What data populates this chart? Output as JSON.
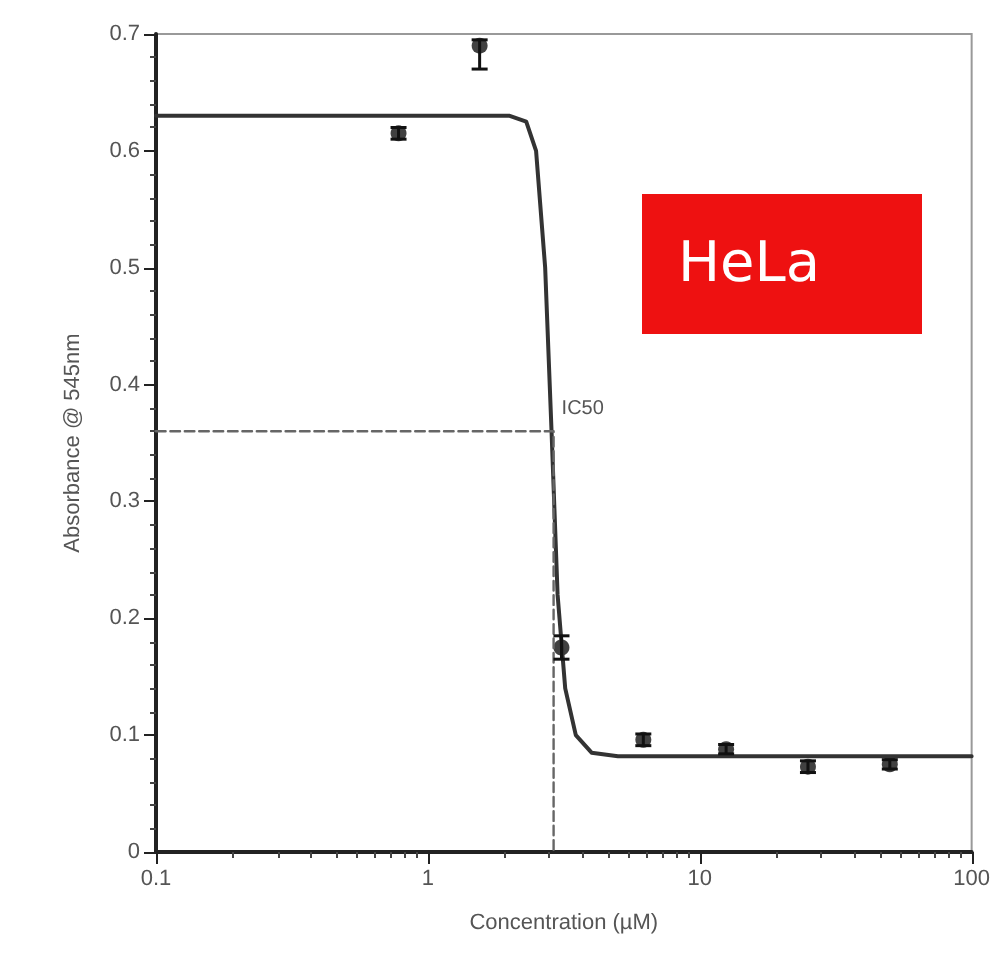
{
  "chart_data": {
    "type": "scatter",
    "xlabel": "Concentration (µM)",
    "ylabel": "Absorbance @ 545nm",
    "log": "x",
    "xlim": [
      0.1,
      100
    ],
    "xticks": [
      0.1,
      1,
      10,
      100
    ],
    "ylim": [
      0,
      0.7
    ],
    "yticks": [
      0,
      0.1,
      0.2,
      0.3,
      0.4,
      0.5,
      0.6,
      0.7
    ],
    "grid": false,
    "series": [
      {
        "color": "#111111",
        "marker": "circle",
        "x": [
          0.78,
          1.55,
          3.1,
          6.2,
          12.5,
          25,
          50
        ],
        "values": [
          0.615,
          0.69,
          0.175,
          0.096,
          0.088,
          0.073,
          0.075
        ],
        "errors": [
          0.005,
          [
            0.67,
            0.695
          ],
          0.01,
          0.005,
          0.004,
          0.005,
          0.004
        ]
      },
      {
        "type": "line",
        "color": "#333333",
        "line_style": "solid",
        "marker": "none",
        "x": [
          0.1,
          2.0,
          2.3,
          2.5,
          2.7,
          2.85,
          3.0,
          3.2,
          3.5,
          4,
          5,
          100
        ],
        "values": [
          0.63,
          0.63,
          0.625,
          0.6,
          0.5,
          0.36,
          0.22,
          0.14,
          0.1,
          0.085,
          0.082,
          0.082
        ]
      },
      {
        "type": "line",
        "color": "#666666",
        "line_style": "dashed",
        "marker": "none",
        "x": [
          0.1,
          2.9,
          2.9
        ],
        "values": [
          0.36,
          0.36,
          0
        ]
      }
    ],
    "annotations": [
      {
        "text": "IC50",
        "x": 2.9,
        "y": 0.36
      },
      "HeLa"
    ]
  }
}
